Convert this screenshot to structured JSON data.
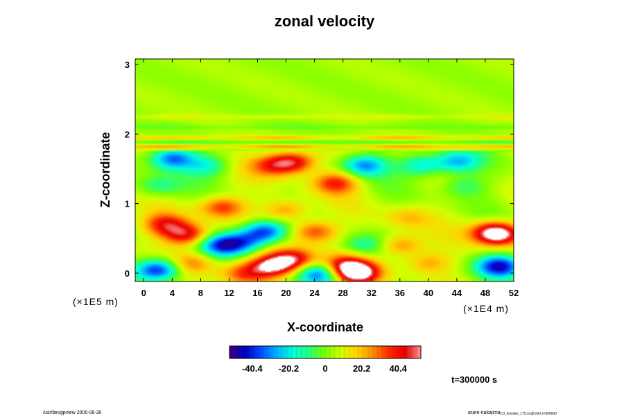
{
  "chart_data": {
    "type": "heatmap",
    "title": "zonal velocity",
    "xlabel": "X-coordinate",
    "ylabel": "Z-coordinate",
    "x_ticks": [
      "0",
      "4",
      "8",
      "12",
      "16",
      "20",
      "24",
      "28",
      "32",
      "36",
      "40",
      "44",
      "48",
      "52"
    ],
    "y_ticks": [
      "0",
      "1",
      "2",
      "3"
    ],
    "x_scale_note": "(×1E4 m)",
    "y_scale_note": "(×1E5 m)",
    "xlim": [
      -1.2,
      52
    ],
    "ylim": [
      -0.12,
      3.08
    ],
    "colorbar": {
      "ticks": [
        "-40.4",
        "-20.2",
        "0",
        "20.2",
        "40.4"
      ],
      "tick_values": [
        -40.4,
        -20.2,
        0,
        20.2,
        40.4
      ],
      "range": [
        -53,
        53
      ],
      "colors": [
        "#3a0078",
        "#0000c8",
        "#0050ff",
        "#00b4ff",
        "#00ffdc",
        "#28ff78",
        "#78ff00",
        "#d2ff00",
        "#ffd200",
        "#ff8c00",
        "#ff2800",
        "#e60000",
        "#ff9696"
      ]
    },
    "background_value": 6,
    "features": [
      {
        "x": 6,
        "z": 0.55,
        "value": 38
      },
      {
        "x": 3,
        "z": 0.7,
        "value": 32
      },
      {
        "x": 50,
        "z": 0.55,
        "value": 38
      },
      {
        "x": 49,
        "z": 0.6,
        "value": 30
      },
      {
        "x": 2,
        "z": 0.05,
        "value": -50
      },
      {
        "x": 50,
        "z": 0.1,
        "value": -48
      },
      {
        "x": 4,
        "z": 1.65,
        "value": -40
      },
      {
        "x": 9,
        "z": 1.55,
        "value": -22
      },
      {
        "x": 17,
        "z": 0.6,
        "value": -45
      },
      {
        "x": 14,
        "z": 0.45,
        "value": -30
      },
      {
        "x": 11,
        "z": 0.4,
        "value": -38
      },
      {
        "x": 18,
        "z": 0.1,
        "value": 45
      },
      {
        "x": 21,
        "z": 0.2,
        "value": 40
      },
      {
        "x": 14,
        "z": 0.0,
        "value": 25
      },
      {
        "x": 30,
        "z": 0.0,
        "value": 52
      },
      {
        "x": 28,
        "z": 0.1,
        "value": 35
      },
      {
        "x": 25,
        "z": 0.0,
        "value": -40
      },
      {
        "x": 21,
        "z": 1.6,
        "value": 40
      },
      {
        "x": 18,
        "z": 1.55,
        "value": 25
      },
      {
        "x": 27,
        "z": 1.3,
        "value": 30
      },
      {
        "x": 31,
        "z": 1.55,
        "value": -35
      },
      {
        "x": 39,
        "z": 1.55,
        "value": -28
      },
      {
        "x": 44,
        "z": 1.6,
        "value": -30
      },
      {
        "x": 31,
        "z": 0.4,
        "value": -20
      },
      {
        "x": 36,
        "z": 0.4,
        "value": 25
      },
      {
        "x": 11,
        "z": 0.95,
        "value": 30
      },
      {
        "x": 20,
        "z": 0.9,
        "value": 22
      },
      {
        "x": 7,
        "z": 0.15,
        "value": 22
      },
      {
        "x": 40,
        "z": 0.15,
        "value": 18
      },
      {
        "x": 24,
        "z": 0.6,
        "value": 30
      },
      {
        "x": 45,
        "z": 1.25,
        "value": -15
      },
      {
        "x": 2,
        "z": 1.25,
        "value": -18
      },
      {
        "x": 37,
        "z": 0.8,
        "value": 14
      }
    ],
    "bands": [
      {
        "z": 1.82,
        "value": 20
      },
      {
        "z": 1.88,
        "value": -8
      },
      {
        "z": 1.95,
        "value": 16
      },
      {
        "z": 2.1,
        "value": -6
      },
      {
        "z": 2.25,
        "value": 8
      }
    ]
  },
  "footer": {
    "time_label": "t=300000 s",
    "left_note": "/usr/bin/gpview 2005-08-30",
    "right_note": "arare-nakajima",
    "right_note_small": "C3_Kessler_175.nc@VelX,t=300000"
  }
}
